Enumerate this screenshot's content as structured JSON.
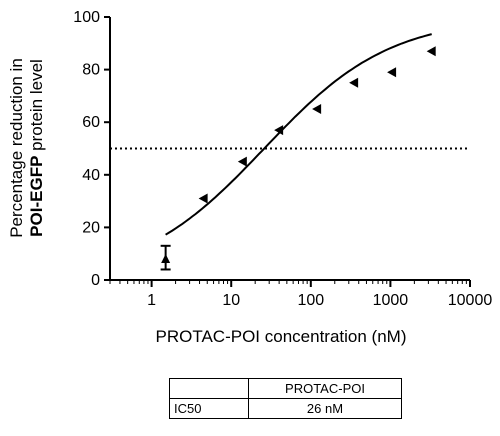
{
  "chart_data": {
    "type": "scatter",
    "xlabel": "PROTAC-POI concentration (nM)",
    "ylabel_line1": "Percentage reduction in",
    "ylabel_line2_bold": "POI-EGFP",
    "ylabel_line2_rest": " protein level",
    "xscale": "log",
    "xlim": [
      0.3,
      10000
    ],
    "ylim": [
      0,
      100
    ],
    "x_ticks": [
      1,
      10,
      100,
      1000,
      10000
    ],
    "x_tick_labels": [
      "1",
      "10",
      "100",
      "1000",
      "10000"
    ],
    "y_ticks": [
      0,
      20,
      40,
      60,
      80,
      100
    ],
    "y_tick_labels": [
      "0",
      "20",
      "40",
      "60",
      "80",
      "100"
    ],
    "points": [
      {
        "x": 1.5,
        "y": 8,
        "yerr_low": 4,
        "yerr_high": 13
      },
      {
        "x": 4.5,
        "y": 31
      },
      {
        "x": 14,
        "y": 45
      },
      {
        "x": 40,
        "y": 57
      },
      {
        "x": 120,
        "y": 65
      },
      {
        "x": 350,
        "y": 75
      },
      {
        "x": 1050,
        "y": 79
      },
      {
        "x": 3300,
        "y": 87
      }
    ],
    "fit_curve": {
      "bottom": 0,
      "top": 100,
      "ic50": 26,
      "hill": 0.55,
      "x_range": [
        1.5,
        3300
      ]
    },
    "reference_line": {
      "y": 50,
      "style": "dotted"
    },
    "grid": false,
    "legend": "none"
  },
  "ic50_table": {
    "header": [
      "",
      "PROTAC-POI"
    ],
    "rows": [
      [
        "IC50",
        "26 nM"
      ]
    ]
  }
}
